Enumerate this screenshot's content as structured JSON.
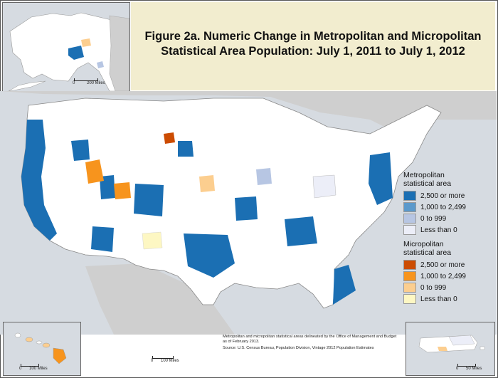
{
  "title": {
    "line1": "Figure 2a. Numeric Change in Metropolitan and Micropolitan",
    "line2": "Statistical Area Population: July 1, 2011 to July 1, 2012"
  },
  "legend": {
    "metro_heading_line1": "Metropolitan",
    "metro_heading_line2": "statistical area",
    "metro_items": [
      {
        "label": "2,500 or more",
        "color": "#1b6fb3"
      },
      {
        "label": "1,000 to 2,499",
        "color": "#5b99cb"
      },
      {
        "label": "0 to 999",
        "color": "#b7c6e3"
      },
      {
        "label": "Less than 0",
        "color": "#eceef8"
      }
    ],
    "micro_heading_line1": "Micropolitan",
    "micro_heading_line2": "statistical area",
    "micro_items": [
      {
        "label": "2,500 or more",
        "color": "#cc4c02"
      },
      {
        "label": "1,000 to 2,499",
        "color": "#f7941d"
      },
      {
        "label": "0 to 999",
        "color": "#fcce8f"
      },
      {
        "label": "Less than 0",
        "color": "#fdf7c3"
      }
    ]
  },
  "notes": {
    "definition": "Metropolitan and micropolitan statistical areas delineated by the Office of Management and Budget as of February 2013.",
    "source": "Source: U.S. Census Bureau, Population Division, Vintage 2012 Population Estimates"
  },
  "scales": {
    "alaska": {
      "zero": "0",
      "distance": "200 Miles"
    },
    "main": {
      "zero": "0",
      "distance": "100 Miles"
    },
    "hawaii": {
      "zero": "0",
      "distance": "100 Miles"
    },
    "puerto_rico": {
      "zero": "0",
      "distance": "50 Miles"
    }
  },
  "colors": {
    "water": "#d6dbe1",
    "land_non_cbsa": "#ffffff",
    "title_background": "#f2edcf",
    "neighbor_land": "#cfcfcf"
  }
}
